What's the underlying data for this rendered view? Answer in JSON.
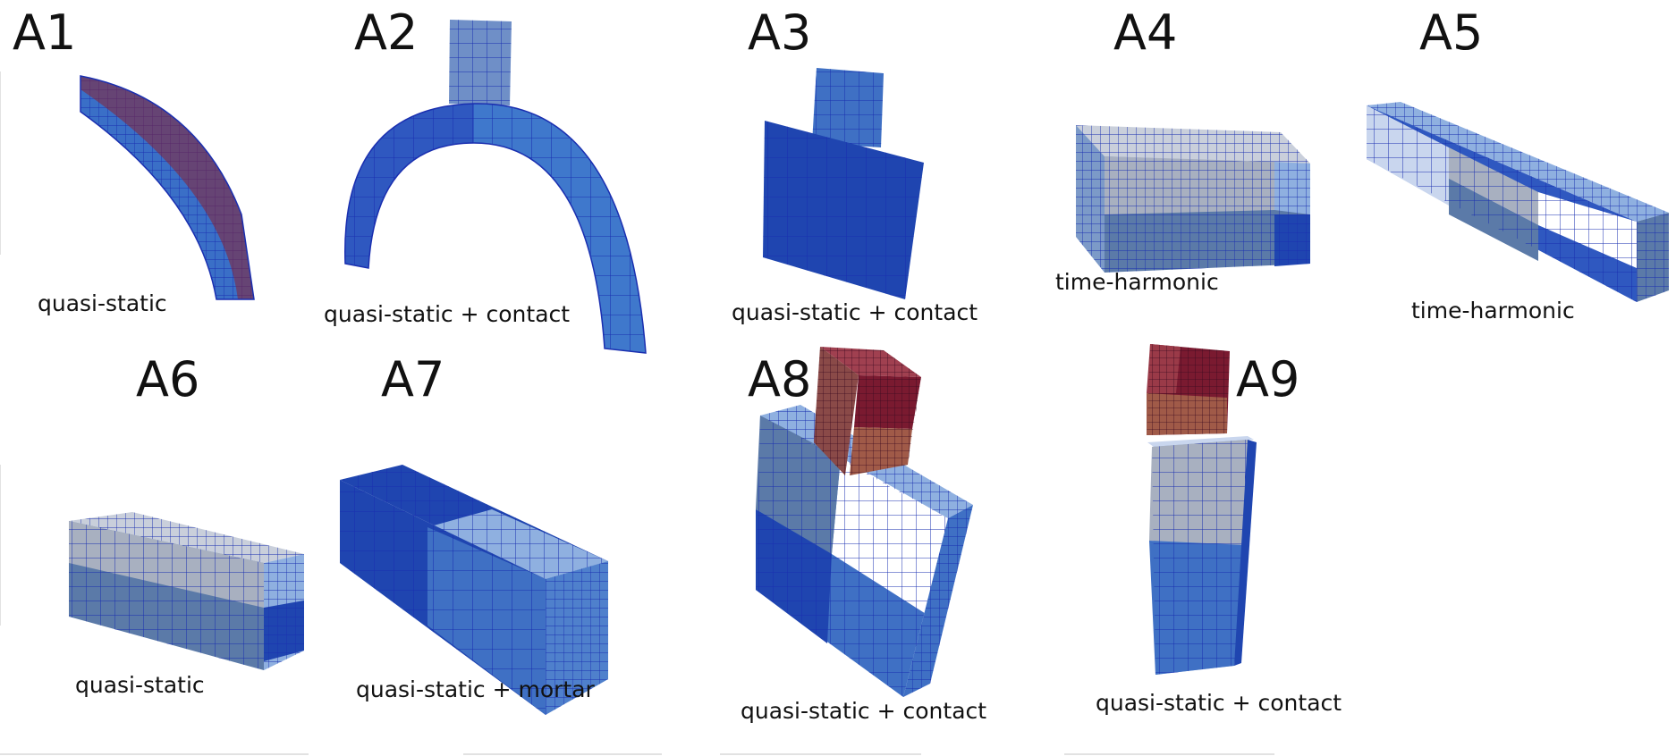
{
  "figure": {
    "panels": [
      {
        "id": "A1",
        "caption": "quasi-static"
      },
      {
        "id": "A2",
        "caption": "quasi-static + contact"
      },
      {
        "id": "A3",
        "caption": "quasi-static + contact"
      },
      {
        "id": "A4",
        "caption": "time-harmonic"
      },
      {
        "id": "A5",
        "caption": "time-harmonic"
      },
      {
        "id": "A6",
        "caption": "quasi-static"
      },
      {
        "id": "A7",
        "caption": "quasi-static + mortar"
      },
      {
        "id": "A8",
        "caption": "quasi-static + contact"
      },
      {
        "id": "A9",
        "caption": "quasi-static + contact"
      }
    ]
  },
  "colors": {
    "mesh_line": "#1a2fb0",
    "dark_blue": "#1f3fb0",
    "mid_blue": "#3a6fc7",
    "light_blue": "#8fb0e0",
    "steel": "#5b7aa8",
    "grey": "#a8b0c0",
    "white": "#ffffff",
    "red": "#8a2030",
    "dark_red": "#6a1430"
  }
}
